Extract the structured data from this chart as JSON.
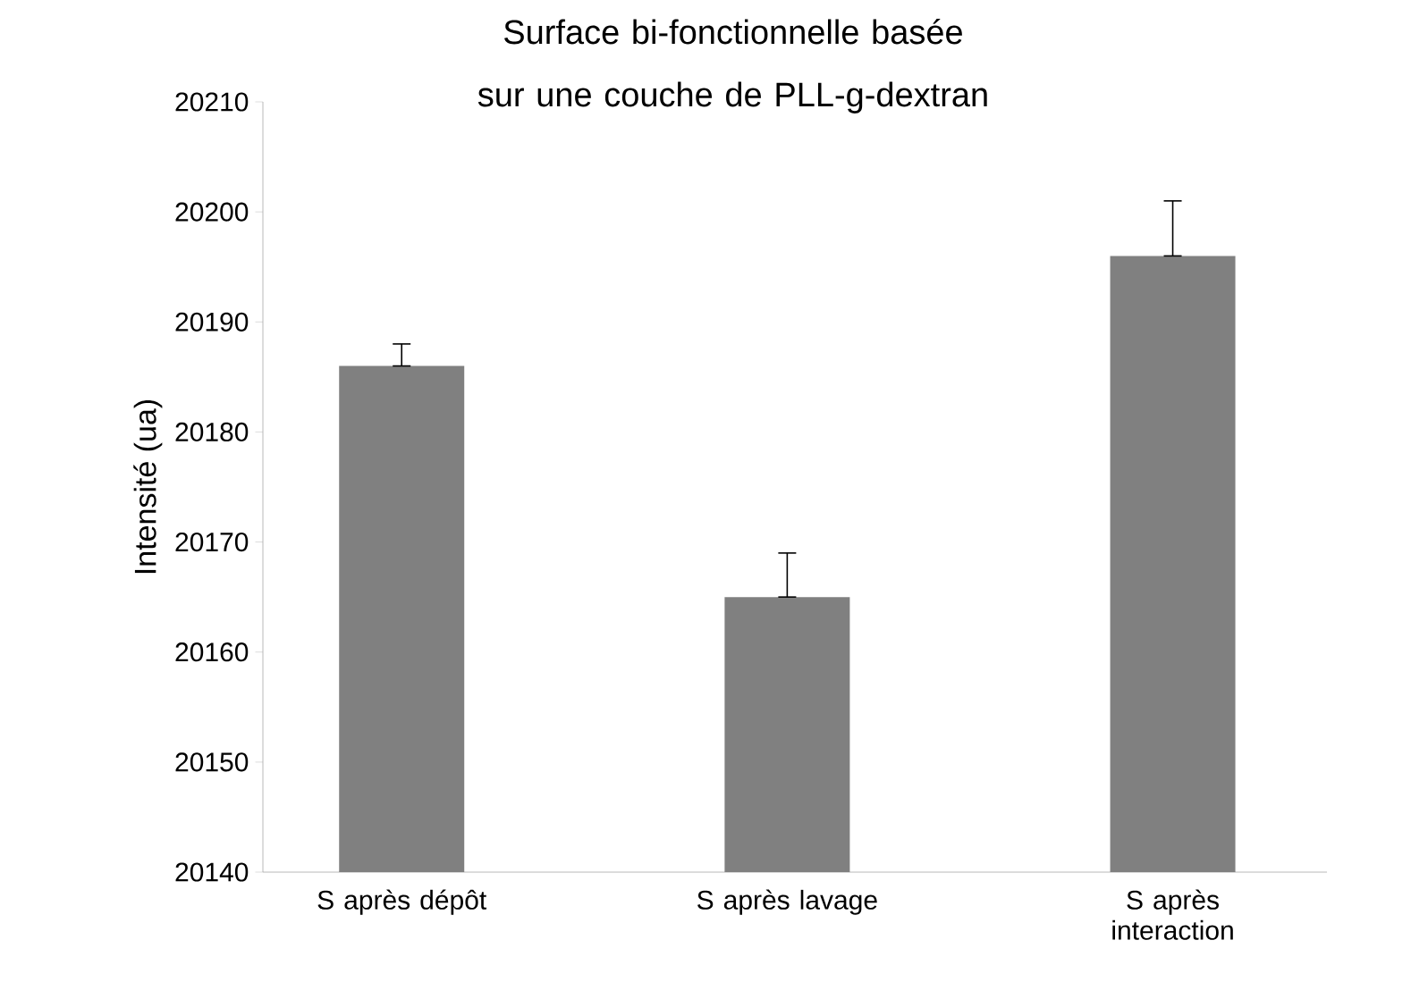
{
  "chart_data": {
    "type": "bar",
    "title": "Surface bi-fonctionnelle basée sur une couche de PLL-g-dextran",
    "ylabel": "Intensité (ua)",
    "categories": [
      "S après dépôt",
      "S après lavage",
      "S après interaction"
    ],
    "values": [
      20186,
      20165,
      20196
    ],
    "errors": [
      [
        20186,
        20188
      ],
      [
        20165,
        20169
      ],
      [
        20196,
        20201
      ]
    ],
    "color": "#808080",
    "ylim": [
      20140,
      20210
    ],
    "yticks": [
      20140,
      20150,
      20160,
      20170,
      20180,
      20190,
      20200,
      20210
    ],
    "grid": false
  }
}
